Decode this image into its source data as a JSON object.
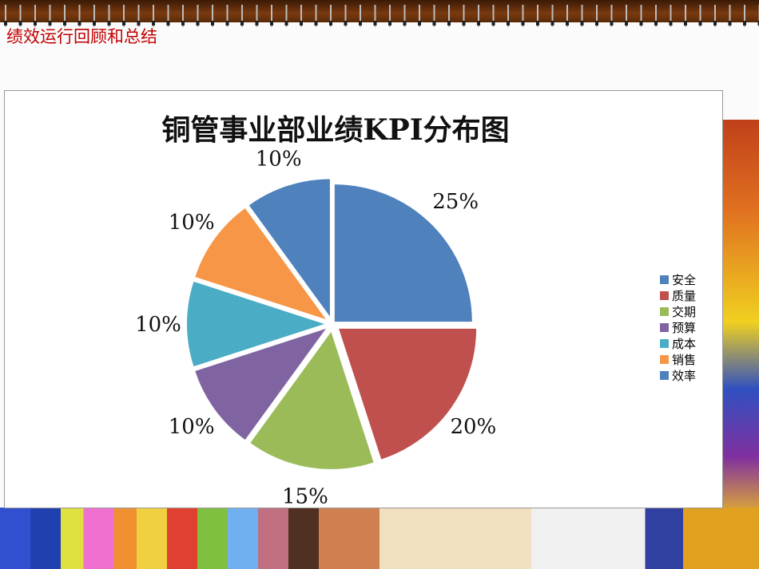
{
  "slide_title": "绩效运行回顾和总结",
  "chart_data": {
    "type": "pie",
    "title": "铜管事业部业绩KPI分布图",
    "categories": [
      "安全",
      "质量",
      "交期",
      "预算",
      "成本",
      "销售",
      "效率"
    ],
    "values": [
      25,
      20,
      15,
      10,
      10,
      10,
      10
    ],
    "data_labels": [
      "25%",
      "20%",
      "15%",
      "10%",
      "10%",
      "10%",
      "10%"
    ],
    "colors": [
      "#4f81bd",
      "#c0504d",
      "#9bbb59",
      "#8064a2",
      "#4bacc6",
      "#f79646",
      "#4f81bd"
    ],
    "exploded": true,
    "start_angle": "12 o'clock, clockwise",
    "legend_position": "right"
  }
}
